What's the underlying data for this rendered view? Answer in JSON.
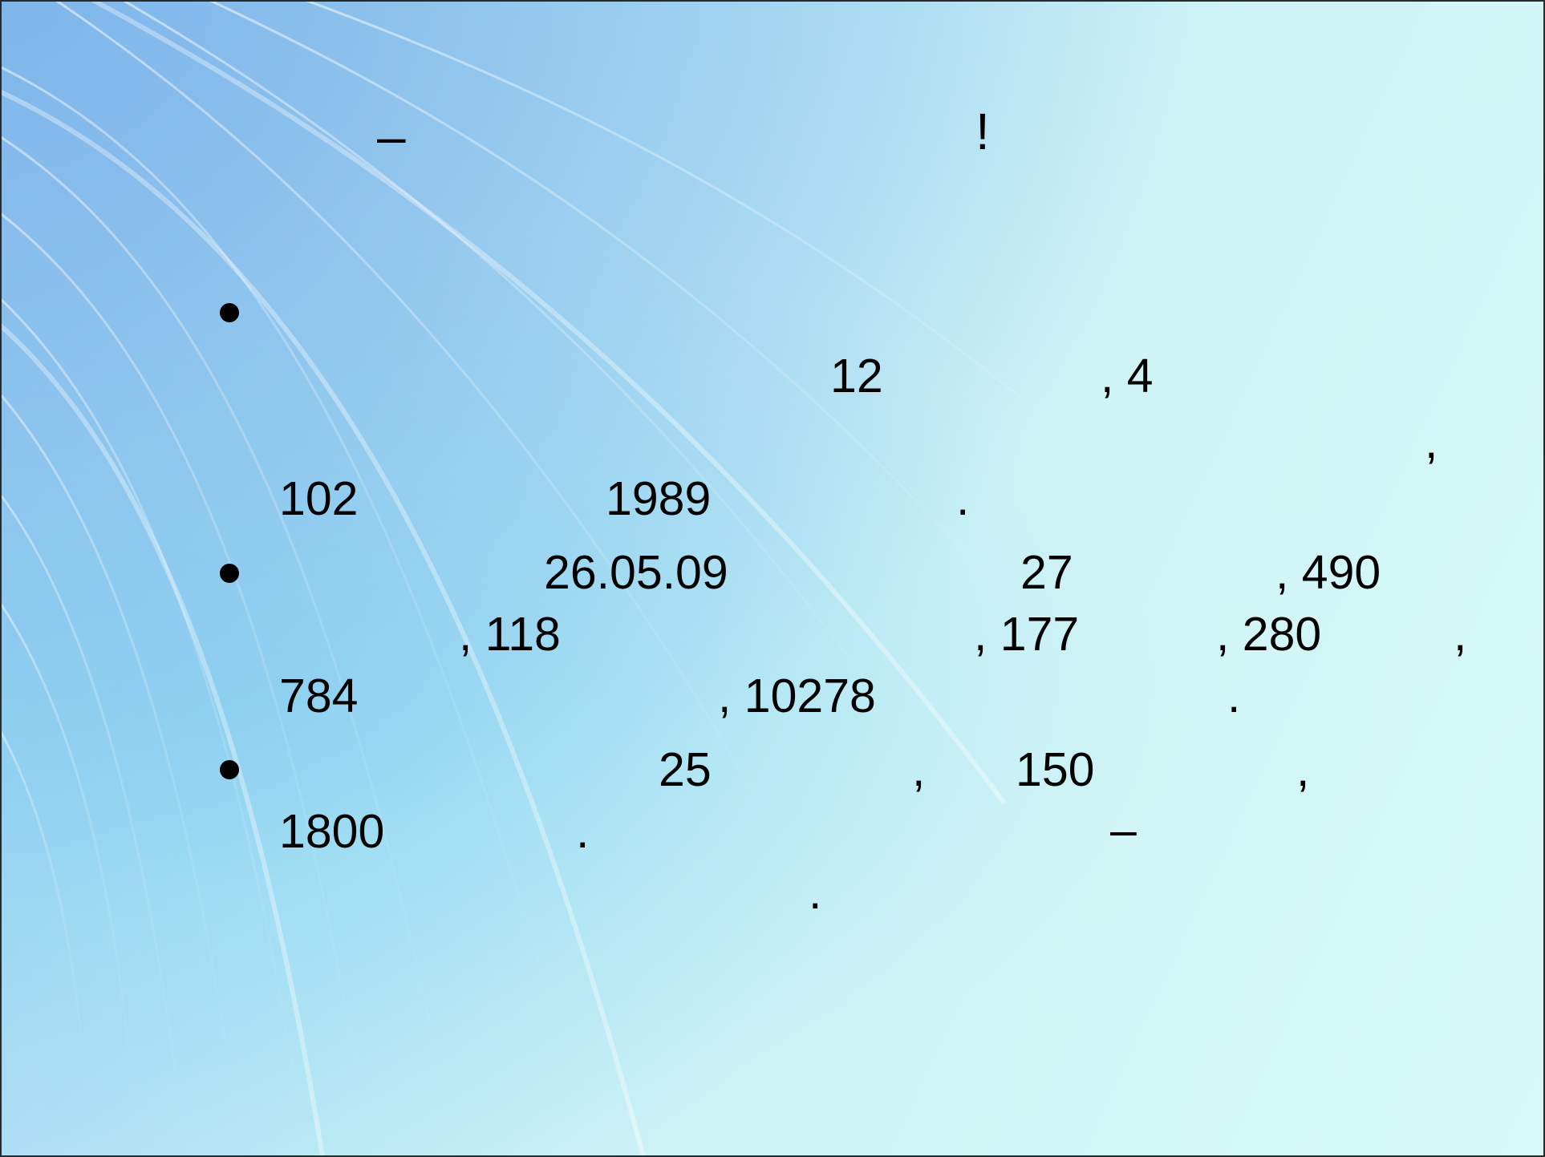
{
  "slide": {
    "title": {
      "dash": "–",
      "exclaim": "!"
    },
    "bullets": [
      {
        "fragments": [
          "12",
          ", 4",
          ",",
          "102",
          "1989",
          "."
        ]
      },
      {
        "fragments": [
          "26.05.09",
          "27",
          ", 490",
          ", 118",
          ", 177",
          ", 280",
          ",",
          "784",
          ", 10278",
          "."
        ]
      },
      {
        "fragments": [
          "25",
          ",",
          "150",
          ",",
          "1800",
          ".",
          "–",
          "."
        ]
      }
    ]
  }
}
